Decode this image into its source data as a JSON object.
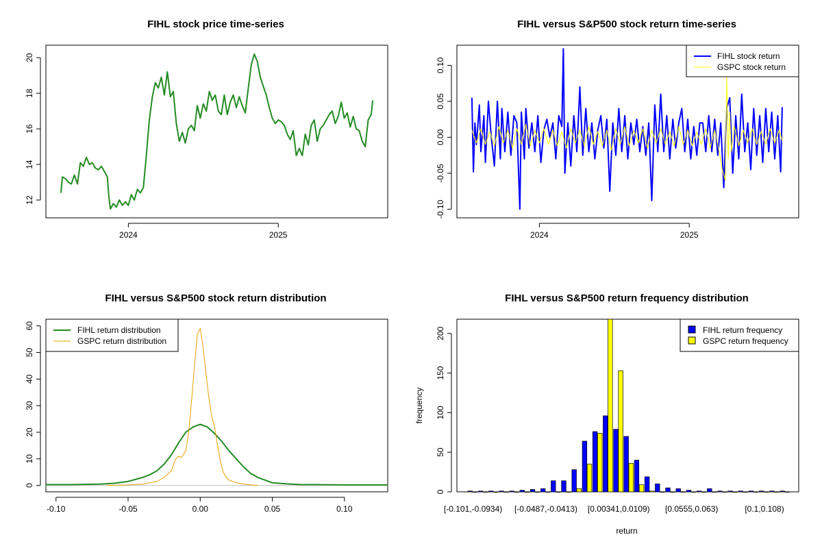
{
  "figure": {
    "background": "#ffffff"
  },
  "chart_data": [
    {
      "id": "price",
      "type": "line",
      "title": "FIHL stock price time-series",
      "xlabel": "",
      "ylabel": "",
      "xlim": [
        2023.45,
        2025.73
      ],
      "ylim": [
        11.0,
        20.7
      ],
      "xticks": [
        {
          "value": 2024.0,
          "label": "2024"
        },
        {
          "value": 2025.0,
          "label": "2025"
        }
      ],
      "yticks": [
        {
          "value": 12,
          "label": "12"
        },
        {
          "value": 14,
          "label": "14"
        },
        {
          "value": 16,
          "label": "16"
        },
        {
          "value": 18,
          "label": "18"
        },
        {
          "value": 20,
          "label": "20"
        }
      ],
      "series": [
        {
          "name": "FIHL",
          "color": "#228B22",
          "width": 2,
          "x": [
            2023.55,
            2023.56,
            2023.58,
            2023.6,
            2023.62,
            2023.64,
            2023.66,
            2023.68,
            2023.7,
            2023.72,
            2023.74,
            2023.76,
            2023.78,
            2023.8,
            2023.82,
            2023.84,
            2023.86,
            2023.87,
            2023.88,
            2023.9,
            2023.92,
            2023.94,
            2023.96,
            2023.98,
            2024.0,
            2024.02,
            2024.04,
            2024.06,
            2024.08,
            2024.1,
            2024.12,
            2024.14,
            2024.16,
            2024.18,
            2024.2,
            2024.22,
            2024.24,
            2024.26,
            2024.28,
            2024.3,
            2024.32,
            2024.34,
            2024.36,
            2024.38,
            2024.4,
            2024.42,
            2024.44,
            2024.46,
            2024.48,
            2024.5,
            2024.52,
            2024.54,
            2024.56,
            2024.58,
            2024.6,
            2024.62,
            2024.64,
            2024.66,
            2024.68,
            2024.7,
            2024.72,
            2024.74,
            2024.76,
            2024.78,
            2024.8,
            2024.82,
            2024.84,
            2024.86,
            2024.88,
            2024.9,
            2024.92,
            2024.94,
            2024.96,
            2024.98,
            2025.0,
            2025.02,
            2025.04,
            2025.06,
            2025.08,
            2025.1,
            2025.12,
            2025.14,
            2025.16,
            2025.18,
            2025.2,
            2025.22,
            2025.24,
            2025.26,
            2025.28,
            2025.3,
            2025.32,
            2025.34,
            2025.36,
            2025.38,
            2025.4,
            2025.42,
            2025.44,
            2025.46,
            2025.48,
            2025.5,
            2025.52,
            2025.54,
            2025.56,
            2025.58,
            2025.6,
            2025.62,
            2025.63
          ],
          "values": [
            12.4,
            13.3,
            13.2,
            13.0,
            12.9,
            13.4,
            12.9,
            14.1,
            13.9,
            14.4,
            14.0,
            14.1,
            13.8,
            13.7,
            13.9,
            13.6,
            13.3,
            12.2,
            11.5,
            11.8,
            11.6,
            12.0,
            11.7,
            11.9,
            11.7,
            12.3,
            12.0,
            12.6,
            12.4,
            12.7,
            14.5,
            16.5,
            17.8,
            18.6,
            18.3,
            18.9,
            17.9,
            19.2,
            17.8,
            18.1,
            16.3,
            15.3,
            15.8,
            15.2,
            16.0,
            16.2,
            15.9,
            17.3,
            16.6,
            17.4,
            17.0,
            18.1,
            17.6,
            17.9,
            17.0,
            16.8,
            17.9,
            16.8,
            17.5,
            17.9,
            17.2,
            17.8,
            17.3,
            16.9,
            18.3,
            19.6,
            20.2,
            19.8,
            18.9,
            18.4,
            17.9,
            17.2,
            16.6,
            16.3,
            16.5,
            16.4,
            16.2,
            15.7,
            15.4,
            15.9,
            14.5,
            14.9,
            14.5,
            15.7,
            15.1,
            16.2,
            16.5,
            15.3,
            16.0,
            16.2,
            16.5,
            16.8,
            17.0,
            16.3,
            16.7,
            17.5,
            16.6,
            16.9,
            16.1,
            16.7,
            16.0,
            15.9,
            15.3,
            15.0,
            16.5,
            16.8,
            17.6
          ]
        }
      ]
    },
    {
      "id": "returns",
      "type": "line",
      "title": "FIHL versus S&P500 stock return time-series",
      "xlabel": "",
      "ylabel": "",
      "xlim": [
        2023.45,
        2025.73
      ],
      "ylim": [
        -0.112,
        0.128
      ],
      "xticks": [
        {
          "value": 2024.0,
          "label": "2024"
        },
        {
          "value": 2025.0,
          "label": "2025"
        }
      ],
      "yticks": [
        {
          "value": -0.1,
          "label": "-0.10"
        },
        {
          "value": -0.05,
          "label": "-0.05"
        },
        {
          "value": 0.0,
          "label": "0.00"
        },
        {
          "value": 0.05,
          "label": "0.05"
        },
        {
          "value": 0.1,
          "label": "0.10"
        }
      ],
      "legend": {
        "position": "top-right"
      },
      "series": [
        {
          "name": "FIHL stock return",
          "color": "#0000FF",
          "width": 2,
          "x": [
            2023.55,
            2023.56,
            2023.57,
            2023.58,
            2023.6,
            2023.61,
            2023.63,
            2023.64,
            2023.66,
            2023.68,
            2023.7,
            2023.72,
            2023.74,
            2023.75,
            2023.77,
            2023.79,
            2023.81,
            2023.83,
            2023.85,
            2023.87,
            2023.88,
            2023.9,
            2023.91,
            2023.93,
            2023.95,
            2023.97,
            2023.99,
            2024.01,
            2024.03,
            2024.05,
            2024.07,
            2024.09,
            2024.11,
            2024.13,
            2024.15,
            2024.16,
            2024.17,
            2024.19,
            2024.21,
            2024.23,
            2024.25,
            2024.27,
            2024.29,
            2024.31,
            2024.33,
            2024.35,
            2024.37,
            2024.39,
            2024.41,
            2024.43,
            2024.45,
            2024.47,
            2024.49,
            2024.51,
            2024.53,
            2024.55,
            2024.57,
            2024.59,
            2024.61,
            2024.63,
            2024.65,
            2024.67,
            2024.69,
            2024.71,
            2024.73,
            2024.75,
            2024.77,
            2024.79,
            2024.81,
            2024.83,
            2024.85,
            2024.87,
            2024.89,
            2024.91,
            2024.93,
            2024.95,
            2024.97,
            2024.99,
            2025.01,
            2025.03,
            2025.05,
            2025.07,
            2025.09,
            2025.11,
            2025.13,
            2025.15,
            2025.17,
            2025.19,
            2025.21,
            2025.23,
            2025.25,
            2025.27,
            2025.29,
            2025.31,
            2025.33,
            2025.35,
            2025.37,
            2025.39,
            2025.41,
            2025.43,
            2025.45,
            2025.47,
            2025.49,
            2025.51,
            2025.53,
            2025.55,
            2025.57,
            2025.59,
            2025.61,
            2025.62
          ],
          "values": [
            0.055,
            -0.048,
            0.02,
            -0.01,
            0.045,
            -0.02,
            0.03,
            -0.035,
            0.05,
            0.0,
            -0.04,
            0.05,
            -0.03,
            0.04,
            -0.02,
            0.035,
            -0.025,
            0.03,
            0.02,
            -0.1,
            0.035,
            -0.03,
            0.04,
            -0.015,
            0.02,
            -0.02,
            0.03,
            -0.035,
            0.01,
            0.025,
            0.0,
            0.02,
            -0.03,
            0.03,
            0.015,
            0.123,
            -0.05,
            0.02,
            -0.04,
            0.03,
            -0.02,
            0.07,
            -0.025,
            0.04,
            -0.02,
            0.02,
            -0.03,
            0.01,
            0.03,
            -0.015,
            0.025,
            -0.075,
            0.02,
            -0.025,
            0.04,
            -0.02,
            0.03,
            -0.03,
            0.02,
            -0.01,
            0.025,
            -0.02,
            0.015,
            -0.025,
            0.02,
            -0.088,
            0.045,
            -0.02,
            0.06,
            -0.02,
            0.03,
            -0.03,
            0.025,
            -0.015,
            0.02,
            0.04,
            -0.02,
            0.025,
            -0.03,
            0.015,
            -0.025,
            0.02,
            0.02,
            -0.02,
            0.03,
            -0.02,
            0.025,
            -0.025,
            0.02,
            -0.07,
            0.04,
            0.055,
            -0.05,
            0.03,
            -0.03,
            0.06,
            -0.02,
            0.02,
            -0.045,
            0.04,
            -0.025,
            0.03,
            -0.035,
            0.04,
            -0.02,
            0.035,
            -0.03,
            0.03,
            -0.048,
            0.042
          ]
        },
        {
          "name": "GSPC stock return",
          "color": "#FFFF00",
          "width": 1,
          "x": [
            2023.55,
            2023.58,
            2023.61,
            2023.64,
            2023.67,
            2023.7,
            2023.73,
            2023.76,
            2023.79,
            2023.82,
            2023.85,
            2023.88,
            2023.91,
            2023.94,
            2023.97,
            2024.0,
            2024.03,
            2024.06,
            2024.09,
            2024.12,
            2024.15,
            2024.18,
            2024.21,
            2024.24,
            2024.27,
            2024.3,
            2024.33,
            2024.36,
            2024.39,
            2024.42,
            2024.45,
            2024.48,
            2024.51,
            2024.54,
            2024.57,
            2024.6,
            2024.63,
            2024.66,
            2024.69,
            2024.72,
            2024.75,
            2024.78,
            2024.81,
            2024.84,
            2024.87,
            2024.9,
            2024.93,
            2024.96,
            2024.99,
            2025.02,
            2025.05,
            2025.08,
            2025.11,
            2025.14,
            2025.17,
            2025.2,
            2025.22,
            2025.24,
            2025.25,
            2025.26,
            2025.27,
            2025.28,
            2025.3,
            2025.33,
            2025.36,
            2025.39,
            2025.42,
            2025.45,
            2025.48,
            2025.51,
            2025.54,
            2025.57,
            2025.6,
            2025.62
          ],
          "values": [
            0.01,
            -0.008,
            0.012,
            -0.01,
            0.008,
            -0.012,
            0.015,
            -0.008,
            0.01,
            -0.015,
            0.012,
            -0.01,
            0.018,
            -0.012,
            0.01,
            -0.008,
            0.012,
            -0.01,
            0.01,
            -0.012,
            0.008,
            -0.015,
            0.012,
            -0.008,
            0.01,
            -0.012,
            0.015,
            -0.01,
            0.008,
            -0.012,
            0.01,
            -0.018,
            0.012,
            -0.01,
            0.015,
            -0.012,
            0.01,
            -0.008,
            0.012,
            -0.015,
            0.01,
            -0.008,
            0.012,
            -0.01,
            0.008,
            -0.012,
            0.015,
            -0.01,
            0.01,
            -0.012,
            0.008,
            -0.01,
            0.012,
            -0.015,
            0.01,
            -0.02,
            -0.045,
            -0.06,
            0.085,
            -0.03,
            0.035,
            -0.02,
            0.015,
            -0.012,
            0.01,
            -0.008,
            0.012,
            -0.01,
            0.008,
            -0.01,
            0.012,
            -0.008,
            0.01,
            -0.005
          ]
        }
      ]
    },
    {
      "id": "density",
      "type": "line",
      "title": "FIHL versus S&P500 stock return distribution",
      "xlabel": "",
      "ylabel": "",
      "xlim": [
        -0.107,
        0.13
      ],
      "ylim": [
        -2.4,
        62.5
      ],
      "xticks": [
        {
          "value": -0.1,
          "label": "-0.10"
        },
        {
          "value": -0.05,
          "label": "-0.05"
        },
        {
          "value": 0.0,
          "label": "0.00"
        },
        {
          "value": 0.05,
          "label": "0.05"
        },
        {
          "value": 0.1,
          "label": "0.10"
        }
      ],
      "yticks": [
        {
          "value": 0,
          "label": "0"
        },
        {
          "value": 10,
          "label": "10"
        },
        {
          "value": 20,
          "label": "20"
        },
        {
          "value": 30,
          "label": "30"
        },
        {
          "value": 40,
          "label": "40"
        },
        {
          "value": 50,
          "label": "50"
        },
        {
          "value": 60,
          "label": "60"
        }
      ],
      "legend": {
        "position": "top-left"
      },
      "series": [
        {
          "name": "FIHL return distribution",
          "color": "#228B22",
          "width": 2,
          "x": [
            -0.107,
            -0.09,
            -0.07,
            -0.06,
            -0.05,
            -0.04,
            -0.035,
            -0.03,
            -0.025,
            -0.02,
            -0.015,
            -0.01,
            -0.005,
            0.0,
            0.005,
            0.01,
            0.015,
            0.02,
            0.025,
            0.03,
            0.035,
            0.04,
            0.045,
            0.05,
            0.06,
            0.07,
            0.08,
            0.1,
            0.13
          ],
          "values": [
            0.3,
            0.3,
            0.5,
            0.8,
            1.5,
            3.0,
            4.0,
            5.5,
            8.0,
            11.5,
            16.0,
            20.0,
            22.0,
            23.0,
            22.0,
            19.5,
            16.5,
            13.0,
            10.0,
            7.0,
            4.5,
            3.0,
            2.0,
            1.0,
            0.6,
            0.3,
            0.3,
            0.2,
            0.2
          ]
        },
        {
          "name": "GSPC return distribution",
          "color": "#E69F00",
          "width": 1,
          "x": [
            -0.065,
            -0.05,
            -0.04,
            -0.03,
            -0.025,
            -0.02,
            -0.017,
            -0.015,
            -0.013,
            -0.01,
            -0.008,
            -0.006,
            -0.004,
            -0.002,
            0.0,
            0.002,
            0.004,
            0.006,
            0.008,
            0.01,
            0.012,
            0.014,
            0.016,
            0.018,
            0.02,
            0.025,
            0.03,
            0.035,
            0.04
          ],
          "values": [
            0.0,
            0.2,
            0.5,
            1.5,
            3.0,
            5.5,
            10.0,
            11.0,
            10.5,
            13.0,
            20.0,
            32.0,
            45.0,
            57.0,
            59.0,
            52.0,
            42.0,
            33.0,
            26.0,
            22.0,
            15.0,
            9.0,
            5.0,
            3.0,
            2.0,
            1.0,
            0.5,
            0.2,
            0.0
          ]
        }
      ]
    },
    {
      "id": "frequency",
      "type": "bar",
      "title": "FIHL versus S&P500 return frequency distribution",
      "xlabel": "return",
      "ylabel": "frequency",
      "ylim": [
        0,
        218
      ],
      "yticks": [
        {
          "value": 0,
          "label": "0"
        },
        {
          "value": 50,
          "label": "50"
        },
        {
          "value": 100,
          "label": "100"
        },
        {
          "value": 150,
          "label": "150"
        },
        {
          "value": 200,
          "label": "200"
        }
      ],
      "category_labels": [
        {
          "index": 0,
          "label": "[-0.101,-0.0934)"
        },
        {
          "index": 7,
          "label": "[-0.0487,-0.0413)"
        },
        {
          "index": 14,
          "label": "[0.00341,0.0109)"
        },
        {
          "index": 21,
          "label": "[0.0555,0.063)"
        },
        {
          "index": 28,
          "label": "[0.1,0.108)"
        }
      ],
      "legend": {
        "position": "top-right"
      },
      "series": [
        {
          "name": "FIHL return frequency",
          "color": "#0000FF",
          "values": [
            1,
            1,
            1,
            1,
            1,
            2,
            3,
            4,
            14,
            14,
            28,
            64,
            76,
            96,
            79,
            70,
            40,
            19,
            10,
            5,
            4,
            2,
            1,
            4,
            1,
            1,
            1,
            1,
            1,
            1,
            1
          ]
        },
        {
          "name": "GSPC return frequency",
          "color": "#FFFF00",
          "values": [
            0,
            0,
            0,
            0,
            0,
            0,
            0,
            0,
            0,
            0,
            4,
            35,
            74,
            218,
            153,
            36,
            9,
            1,
            0,
            0,
            0,
            0,
            0,
            0,
            0,
            0,
            0,
            0,
            0,
            0,
            0
          ]
        }
      ]
    }
  ]
}
